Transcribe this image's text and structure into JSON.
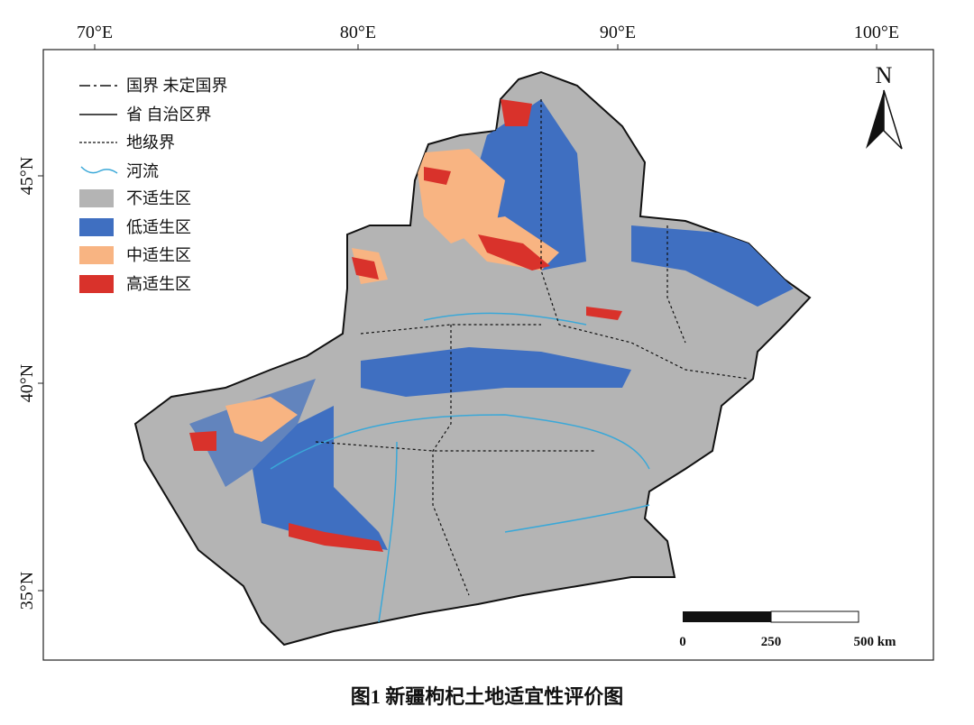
{
  "map": {
    "lon_labels": [
      "70°E",
      "80°E",
      "90°E",
      "100°E"
    ],
    "lat_labels": [
      "45°N",
      "40°N",
      "35°N"
    ],
    "north": "N",
    "legend": [
      "国界 未定国界",
      "省 自治区界",
      "地级界",
      "河流",
      "不适生区",
      "低适生区",
      "中适生区",
      "高适生区"
    ],
    "scale_labels": [
      "0",
      "250",
      "500 km"
    ],
    "caption": "图1 新疆枸杞土地适宜性评价图"
  }
}
